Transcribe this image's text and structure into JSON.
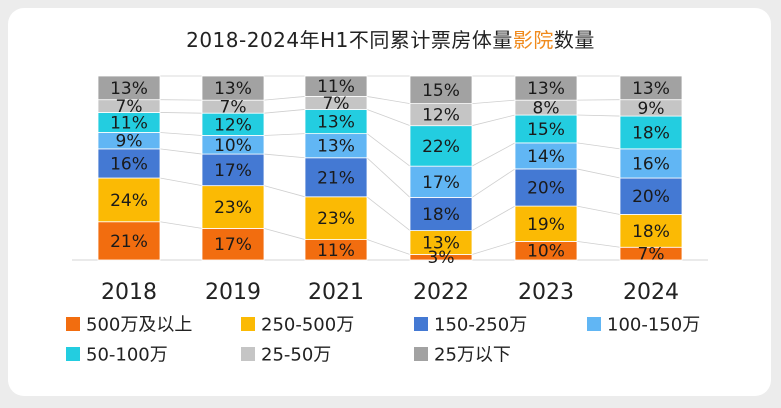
{
  "chart_data": {
    "type": "bar",
    "stacked": true,
    "percent": true,
    "title_main": "2018-2024年H1不同累计票房体量",
    "title_highlight": "影院",
    "title_suffix": "数量",
    "categories": [
      "2018",
      "2019",
      "2021",
      "2022",
      "2023",
      "2024"
    ],
    "series": [
      {
        "name": "500万及以上",
        "color": "#f26d0f",
        "values": [
          21,
          17,
          11,
          3,
          10,
          7
        ]
      },
      {
        "name": "250-500万",
        "color": "#fbba04",
        "values": [
          24,
          23,
          23,
          13,
          19,
          18
        ]
      },
      {
        "name": "150-250万",
        "color": "#4479d3",
        "values": [
          16,
          17,
          21,
          18,
          20,
          20
        ]
      },
      {
        "name": "100-150万",
        "color": "#61b6f4",
        "values": [
          9,
          10,
          13,
          17,
          14,
          16
        ]
      },
      {
        "name": "50-100万",
        "color": "#23cde0",
        "values": [
          11,
          12,
          13,
          22,
          15,
          18
        ]
      },
      {
        "name": "25-50万",
        "color": "#c5c5c5",
        "values": [
          7,
          7,
          7,
          12,
          8,
          9
        ]
      },
      {
        "name": "25万以下",
        "color": "#a2a2a2",
        "values": [
          13,
          13,
          11,
          15,
          13,
          13
        ]
      }
    ],
    "value_suffix": "%",
    "legend_position": "bottom"
  }
}
